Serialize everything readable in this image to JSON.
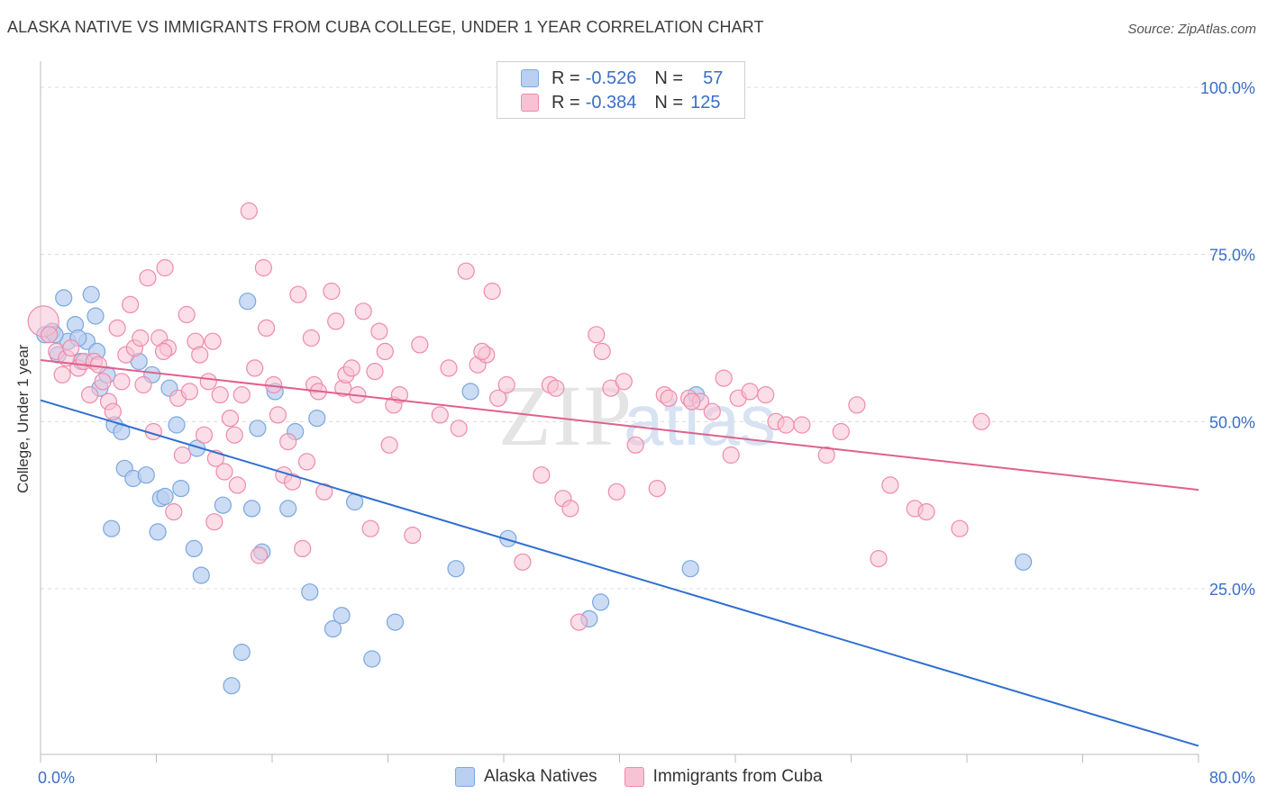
{
  "title": "ALASKA NATIVE VS IMMIGRANTS FROM CUBA COLLEGE, UNDER 1 YEAR CORRELATION CHART",
  "source": "Source: ZipAtlas.com",
  "watermark": {
    "zip": "ZIP",
    "atlas": "atlas"
  },
  "legend": {
    "rows": [
      {
        "r_label": "R =",
        "r_value": "-0.526",
        "n_label": "N =",
        "n_value": "57"
      },
      {
        "r_label": "R =",
        "r_value": "-0.384",
        "n_label": "N =",
        "n_value": "125"
      }
    ]
  },
  "chart_data": {
    "type": "scatter",
    "title": "ALASKA NATIVE VS IMMIGRANTS FROM CUBA COLLEGE, UNDER 1 YEAR CORRELATION CHART",
    "xlabel": "",
    "ylabel": "College, Under 1 year",
    "xlim": [
      0,
      80
    ],
    "ylim": [
      0,
      105
    ],
    "x_tick_labels": [
      "0.0%",
      "80.0%"
    ],
    "y_tick_values": [
      25,
      50,
      75,
      100
    ],
    "y_tick_labels": [
      "25.0%",
      "50.0%",
      "75.0%",
      "100.0%"
    ],
    "grid": true,
    "legend_position": "top-center",
    "series": [
      {
        "name": "Alaska Natives",
        "color": "#7ba7e0",
        "fill": "#b9d0f0",
        "line_color": "#2f6fd1",
        "trend": {
          "x0": 0,
          "y0": 53.2,
          "x1": 80,
          "y1": 1.5
        },
        "points": [
          [
            0.3,
            63.0
          ],
          [
            0.8,
            63.5
          ],
          [
            1.2,
            60.0
          ],
          [
            1.6,
            68.5
          ],
          [
            1.9,
            62.0
          ],
          [
            2.4,
            64.5
          ],
          [
            2.8,
            59.0
          ],
          [
            3.2,
            62.0
          ],
          [
            3.5,
            69.0
          ],
          [
            3.8,
            65.8
          ],
          [
            4.1,
            55.0
          ],
          [
            4.6,
            57.0
          ],
          [
            4.9,
            34.0
          ],
          [
            5.1,
            49.5
          ],
          [
            5.6,
            48.5
          ],
          [
            5.8,
            43.0
          ],
          [
            6.4,
            41.5
          ],
          [
            6.8,
            59.0
          ],
          [
            7.3,
            42.0
          ],
          [
            7.7,
            57.0
          ],
          [
            8.1,
            33.5
          ],
          [
            8.3,
            38.5
          ],
          [
            8.6,
            38.8
          ],
          [
            8.9,
            55.0
          ],
          [
            9.4,
            49.5
          ],
          [
            9.7,
            40.0
          ],
          [
            10.6,
            31.0
          ],
          [
            10.8,
            46.0
          ],
          [
            11.1,
            27.0
          ],
          [
            12.6,
            37.5
          ],
          [
            13.2,
            10.5
          ],
          [
            13.9,
            15.5
          ],
          [
            14.3,
            68.0
          ],
          [
            14.6,
            37.0
          ],
          [
            15.0,
            49.0
          ],
          [
            15.3,
            30.5
          ],
          [
            16.2,
            54.5
          ],
          [
            17.1,
            37.0
          ],
          [
            17.6,
            48.5
          ],
          [
            18.6,
            24.5
          ],
          [
            19.1,
            50.5
          ],
          [
            20.2,
            19.0
          ],
          [
            20.8,
            21.0
          ],
          [
            21.7,
            38.0
          ],
          [
            22.9,
            14.5
          ],
          [
            24.5,
            20.0
          ],
          [
            28.7,
            28.0
          ],
          [
            29.7,
            54.5
          ],
          [
            32.3,
            32.5
          ],
          [
            37.9,
            20.5
          ],
          [
            38.7,
            23.0
          ],
          [
            44.9,
            28.0
          ],
          [
            45.3,
            54.0
          ],
          [
            67.9,
            29.0
          ],
          [
            1.0,
            63.0
          ],
          [
            2.6,
            62.5
          ],
          [
            3.9,
            60.5
          ]
        ]
      },
      {
        "name": "Immigrants from Cuba",
        "color": "#f08aaa",
        "fill": "#f7c3d4",
        "line_color": "#e0608c",
        "trend": {
          "x0": 0,
          "y0": 59.2,
          "x1": 80,
          "y1": 39.8
        },
        "points": [
          [
            0.2,
            65.0
          ],
          [
            0.6,
            63.0
          ],
          [
            1.1,
            60.5
          ],
          [
            1.5,
            57.0
          ],
          [
            1.8,
            59.5
          ],
          [
            2.1,
            61.0
          ],
          [
            2.6,
            58.0
          ],
          [
            3.0,
            59.0
          ],
          [
            3.4,
            54.0
          ],
          [
            3.7,
            59.0
          ],
          [
            4.0,
            58.5
          ],
          [
            4.3,
            56.0
          ],
          [
            4.7,
            53.0
          ],
          [
            5.0,
            51.5
          ],
          [
            5.3,
            64.0
          ],
          [
            5.6,
            56.0
          ],
          [
            5.9,
            60.0
          ],
          [
            6.2,
            67.5
          ],
          [
            6.5,
            61.0
          ],
          [
            6.9,
            62.5
          ],
          [
            7.1,
            55.5
          ],
          [
            7.4,
            71.5
          ],
          [
            7.8,
            48.5
          ],
          [
            8.2,
            62.5
          ],
          [
            8.6,
            73.0
          ],
          [
            8.8,
            61.0
          ],
          [
            9.2,
            36.5
          ],
          [
            9.5,
            53.5
          ],
          [
            9.8,
            45.0
          ],
          [
            10.1,
            66.0
          ],
          [
            10.3,
            54.5
          ],
          [
            10.7,
            62.0
          ],
          [
            11.0,
            60.0
          ],
          [
            11.3,
            48.0
          ],
          [
            11.6,
            56.0
          ],
          [
            11.9,
            62.0
          ],
          [
            12.1,
            44.5
          ],
          [
            12.4,
            54.0
          ],
          [
            12.7,
            42.5
          ],
          [
            13.1,
            50.5
          ],
          [
            13.4,
            48.0
          ],
          [
            13.6,
            40.5
          ],
          [
            13.9,
            54.0
          ],
          [
            14.4,
            81.5
          ],
          [
            14.8,
            58.0
          ],
          [
            15.1,
            30.0
          ],
          [
            15.4,
            73.0
          ],
          [
            15.6,
            64.0
          ],
          [
            16.1,
            55.5
          ],
          [
            16.4,
            51.0
          ],
          [
            16.8,
            42.0
          ],
          [
            17.1,
            47.0
          ],
          [
            17.4,
            41.0
          ],
          [
            17.8,
            69.0
          ],
          [
            18.1,
            31.0
          ],
          [
            18.4,
            44.0
          ],
          [
            18.7,
            62.5
          ],
          [
            18.9,
            55.5
          ],
          [
            19.2,
            54.5
          ],
          [
            19.6,
            39.5
          ],
          [
            20.1,
            69.5
          ],
          [
            20.4,
            65.0
          ],
          [
            20.9,
            55.0
          ],
          [
            21.1,
            57.0
          ],
          [
            21.5,
            58.0
          ],
          [
            21.9,
            54.0
          ],
          [
            22.3,
            66.5
          ],
          [
            22.8,
            34.0
          ],
          [
            23.1,
            57.5
          ],
          [
            23.4,
            63.5
          ],
          [
            23.8,
            60.5
          ],
          [
            24.1,
            46.5
          ],
          [
            24.4,
            52.5
          ],
          [
            24.8,
            54.0
          ],
          [
            25.7,
            33.0
          ],
          [
            26.2,
            61.5
          ],
          [
            27.6,
            51.0
          ],
          [
            28.2,
            58.0
          ],
          [
            28.9,
            49.0
          ],
          [
            29.4,
            72.5
          ],
          [
            30.2,
            58.5
          ],
          [
            30.8,
            60.0
          ],
          [
            31.2,
            69.5
          ],
          [
            31.6,
            53.5
          ],
          [
            32.2,
            55.5
          ],
          [
            33.3,
            29.0
          ],
          [
            34.6,
            42.0
          ],
          [
            35.2,
            55.5
          ],
          [
            35.6,
            55.0
          ],
          [
            36.1,
            38.5
          ],
          [
            36.6,
            37.0
          ],
          [
            37.2,
            20.0
          ],
          [
            38.4,
            63.0
          ],
          [
            38.8,
            60.5
          ],
          [
            39.4,
            55.0
          ],
          [
            39.8,
            39.5
          ],
          [
            40.3,
            56.0
          ],
          [
            41.1,
            46.5
          ],
          [
            42.6,
            40.0
          ],
          [
            43.1,
            54.0
          ],
          [
            43.4,
            53.5
          ],
          [
            44.8,
            53.5
          ],
          [
            45.6,
            53.0
          ],
          [
            46.4,
            51.5
          ],
          [
            47.2,
            56.5
          ],
          [
            47.7,
            45.0
          ],
          [
            48.2,
            53.5
          ],
          [
            49.0,
            54.5
          ],
          [
            50.1,
            54.0
          ],
          [
            50.8,
            50.0
          ],
          [
            51.5,
            49.5
          ],
          [
            52.6,
            49.5
          ],
          [
            54.3,
            45.0
          ],
          [
            55.3,
            48.5
          ],
          [
            56.4,
            52.5
          ],
          [
            57.9,
            29.5
          ],
          [
            58.7,
            40.5
          ],
          [
            60.4,
            37.0
          ],
          [
            61.2,
            36.5
          ],
          [
            63.5,
            34.0
          ],
          [
            65.0,
            50.0
          ],
          [
            45.0,
            53.0
          ],
          [
            30.5,
            60.5
          ],
          [
            12.0,
            35.0
          ],
          [
            8.5,
            60.5
          ]
        ]
      }
    ]
  },
  "bottom_legend": [
    "Alaska Natives",
    "Immigrants from Cuba"
  ]
}
